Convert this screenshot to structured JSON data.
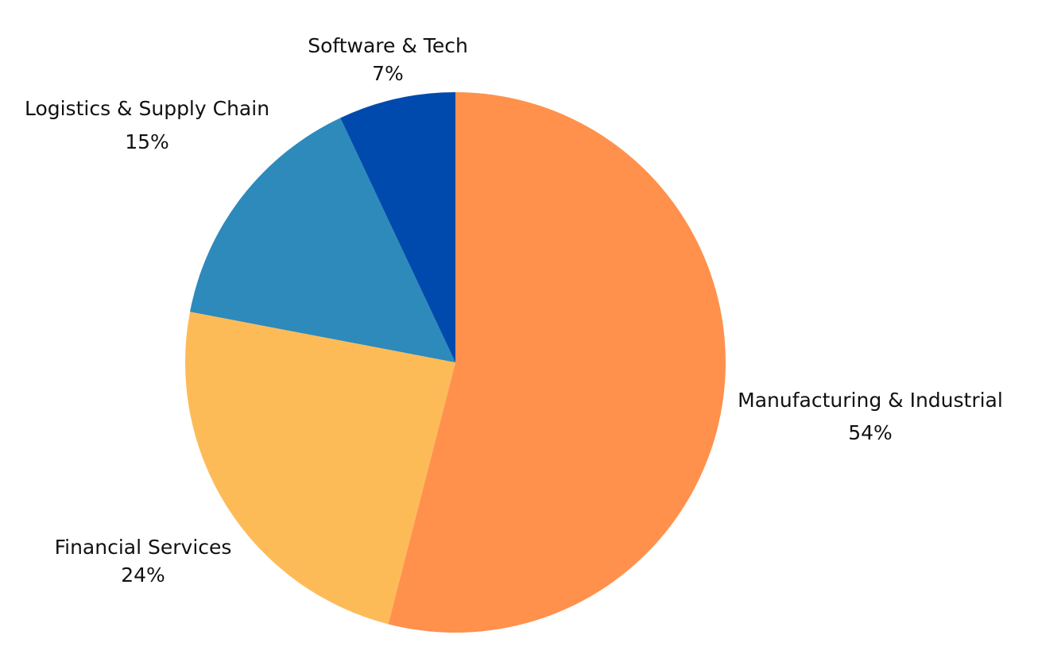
{
  "chart_data": {
    "type": "pie",
    "title": "",
    "start_angle": "12 o'clock",
    "direction": "clockwise",
    "slices": [
      {
        "label": "Manufacturing & Industrial",
        "value": 54,
        "value_label": "54%",
        "color": "#FF914D"
      },
      {
        "label": "Financial Services",
        "value": 24,
        "value_label": "24%",
        "color": "#FDBB58"
      },
      {
        "label": "Logistics & Supply Chain",
        "value": 15,
        "value_label": "15%",
        "color": "#2D8ABB"
      },
      {
        "label": "Software & Tech",
        "value": 7,
        "value_label": "7%",
        "color": "#004AAD"
      }
    ]
  }
}
